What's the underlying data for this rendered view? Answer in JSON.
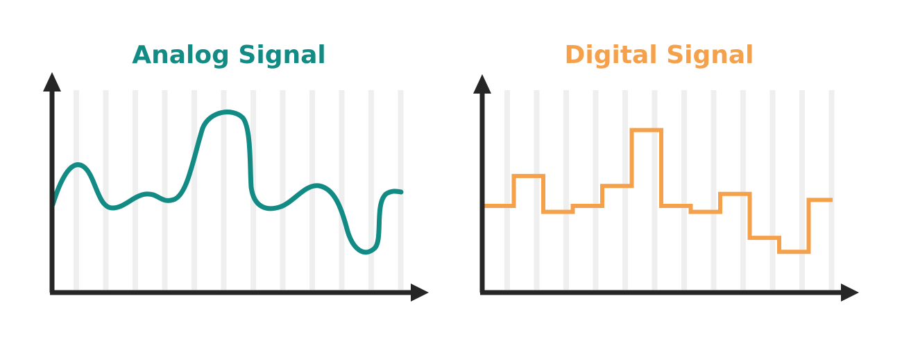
{
  "analog": {
    "title": "Analog Signal",
    "color": "#138b85"
  },
  "digital": {
    "title": "Digital Signal",
    "color": "#f5a04a",
    "levels": [
      0.42,
      0.57,
      0.39,
      0.42,
      0.52,
      0.8,
      0.42,
      0.39,
      0.48,
      0.26,
      0.19,
      0.45
    ]
  },
  "axis_color": "#262626",
  "grid_color": "#efefef",
  "icons": {
    "arrow": "arrow-head-icon"
  }
}
